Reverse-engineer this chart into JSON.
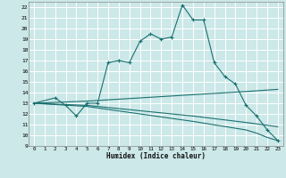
{
  "xlabel": "Humidex (Indice chaleur)",
  "bg_color": "#cce8e8",
  "grid_color": "#ffffff",
  "line_color": "#1a7070",
  "xlim": [
    -0.5,
    23.5
  ],
  "ylim": [
    9,
    22.5
  ],
  "xticks": [
    0,
    1,
    2,
    3,
    4,
    5,
    6,
    7,
    8,
    9,
    10,
    11,
    12,
    13,
    14,
    15,
    16,
    17,
    18,
    19,
    20,
    21,
    22,
    23
  ],
  "yticks": [
    9,
    10,
    11,
    12,
    13,
    14,
    15,
    16,
    17,
    18,
    19,
    20,
    21,
    22
  ],
  "line1_x": [
    0,
    2,
    3,
    4,
    5,
    6,
    7,
    8,
    9,
    10,
    11,
    12,
    13,
    14,
    15,
    16,
    17,
    18,
    19,
    20,
    21,
    22,
    23
  ],
  "line1_y": [
    13.0,
    13.5,
    12.8,
    11.8,
    13.0,
    13.0,
    16.8,
    17.0,
    16.8,
    18.8,
    19.5,
    19.0,
    19.2,
    22.2,
    20.8,
    20.8,
    16.8,
    15.5,
    14.8,
    12.8,
    11.8,
    10.5,
    9.5
  ],
  "line2_x": [
    0,
    5,
    10,
    15,
    20,
    23
  ],
  "line2_y": [
    13.0,
    13.2,
    13.5,
    13.8,
    14.1,
    14.3
  ],
  "line3_x": [
    0,
    5,
    10,
    15,
    20,
    23
  ],
  "line3_y": [
    13.0,
    12.8,
    12.3,
    11.8,
    11.2,
    10.8
  ],
  "line4_x": [
    0,
    5,
    10,
    15,
    20,
    21,
    22,
    23
  ],
  "line4_y": [
    13.0,
    12.7,
    12.0,
    11.3,
    10.5,
    10.2,
    9.8,
    9.5
  ]
}
